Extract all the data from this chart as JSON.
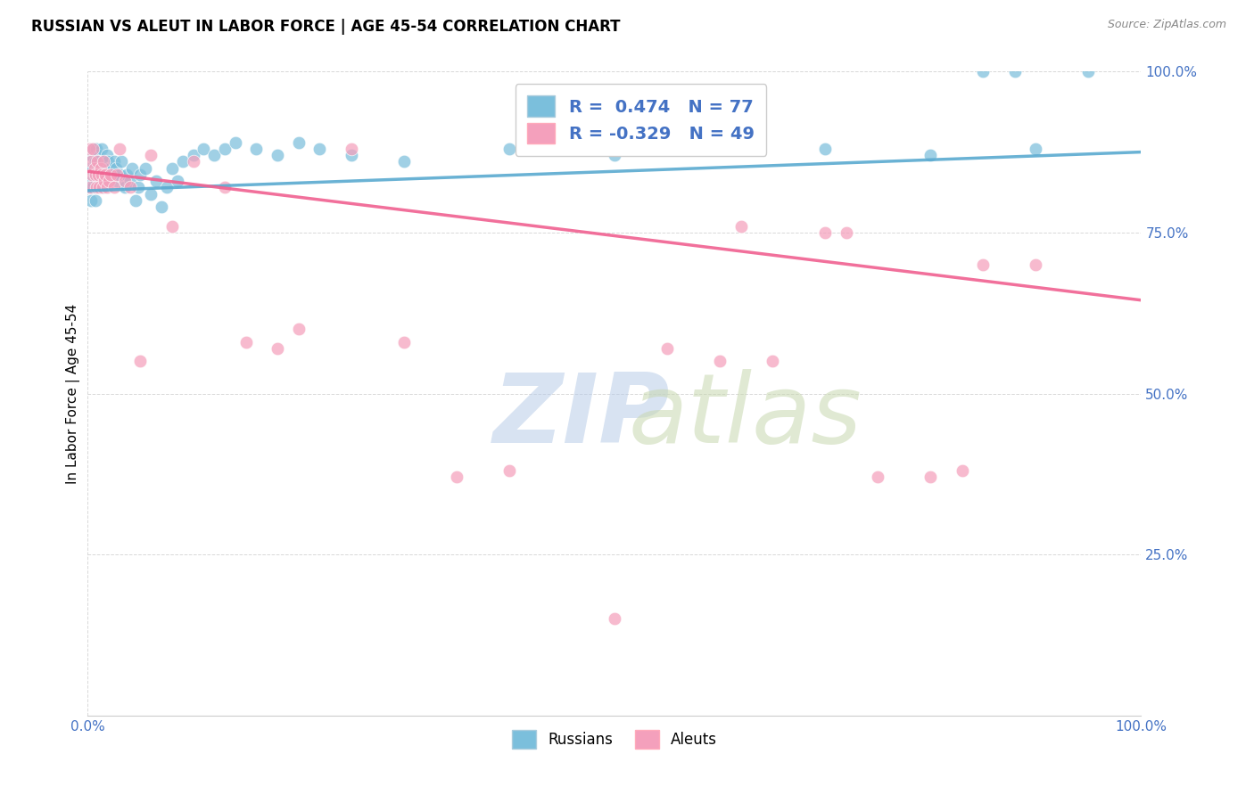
{
  "title": "RUSSIAN VS ALEUT IN LABOR FORCE | AGE 45-54 CORRELATION CHART",
  "source": "Source: ZipAtlas.com",
  "ylabel": "In Labor Force | Age 45-54",
  "R_russian": 0.474,
  "N_russian": 77,
  "R_aleut": -0.329,
  "N_aleut": 49,
  "russian_color": "#7bbfdc",
  "aleut_color": "#f4a0bc",
  "russian_line_color": "#5aaad0",
  "aleut_line_color": "#f06090",
  "background_color": "#ffffff",
  "russians_x": [
    0.001,
    0.002,
    0.003,
    0.003,
    0.004,
    0.004,
    0.005,
    0.005,
    0.006,
    0.006,
    0.007,
    0.007,
    0.008,
    0.008,
    0.009,
    0.009,
    0.01,
    0.01,
    0.011,
    0.011,
    0.012,
    0.012,
    0.013,
    0.013,
    0.014,
    0.015,
    0.015,
    0.016,
    0.016,
    0.017,
    0.017,
    0.018,
    0.018,
    0.019,
    0.02,
    0.021,
    0.022,
    0.023,
    0.025,
    0.027,
    0.028,
    0.03,
    0.032,
    0.035,
    0.037,
    0.04,
    0.042,
    0.045,
    0.048,
    0.05,
    0.055,
    0.06,
    0.065,
    0.07,
    0.075,
    0.08,
    0.085,
    0.09,
    0.1,
    0.11,
    0.12,
    0.13,
    0.14,
    0.16,
    0.18,
    0.2,
    0.22,
    0.25,
    0.3,
    0.4,
    0.5,
    0.7,
    0.8,
    0.85,
    0.88,
    0.9,
    0.95
  ],
  "russians_y": [
    0.82,
    0.85,
    0.8,
    0.87,
    0.83,
    0.88,
    0.82,
    0.85,
    0.84,
    0.88,
    0.8,
    0.86,
    0.83,
    0.88,
    0.82,
    0.85,
    0.84,
    0.87,
    0.83,
    0.86,
    0.82,
    0.85,
    0.84,
    0.88,
    0.83,
    0.82,
    0.85,
    0.84,
    0.86,
    0.83,
    0.85,
    0.84,
    0.87,
    0.86,
    0.85,
    0.84,
    0.85,
    0.84,
    0.86,
    0.85,
    0.83,
    0.84,
    0.86,
    0.82,
    0.84,
    0.83,
    0.85,
    0.8,
    0.82,
    0.84,
    0.85,
    0.81,
    0.83,
    0.79,
    0.82,
    0.85,
    0.83,
    0.86,
    0.87,
    0.88,
    0.87,
    0.88,
    0.89,
    0.88,
    0.87,
    0.89,
    0.88,
    0.87,
    0.86,
    0.88,
    0.87,
    0.88,
    0.87,
    1.0,
    1.0,
    0.88,
    1.0
  ],
  "aleuts_x": [
    0.001,
    0.002,
    0.003,
    0.004,
    0.005,
    0.006,
    0.007,
    0.008,
    0.009,
    0.01,
    0.011,
    0.012,
    0.013,
    0.014,
    0.015,
    0.016,
    0.017,
    0.018,
    0.02,
    0.022,
    0.025,
    0.028,
    0.03,
    0.035,
    0.04,
    0.05,
    0.06,
    0.08,
    0.1,
    0.13,
    0.15,
    0.18,
    0.2,
    0.25,
    0.3,
    0.35,
    0.4,
    0.5,
    0.55,
    0.6,
    0.62,
    0.65,
    0.7,
    0.72,
    0.75,
    0.8,
    0.83,
    0.85,
    0.9
  ],
  "aleuts_y": [
    0.88,
    0.82,
    0.86,
    0.84,
    0.88,
    0.85,
    0.84,
    0.82,
    0.86,
    0.84,
    0.82,
    0.85,
    0.84,
    0.82,
    0.86,
    0.83,
    0.84,
    0.82,
    0.83,
    0.84,
    0.82,
    0.84,
    0.88,
    0.83,
    0.82,
    0.55,
    0.87,
    0.76,
    0.86,
    0.82,
    0.58,
    0.57,
    0.6,
    0.88,
    0.58,
    0.37,
    0.38,
    0.15,
    0.57,
    0.55,
    0.76,
    0.55,
    0.75,
    0.75,
    0.37,
    0.37,
    0.38,
    0.7,
    0.7
  ],
  "xlim": [
    0.0,
    1.0
  ],
  "ylim": [
    0.0,
    1.0
  ],
  "xtick_positions": [
    0.0,
    1.0
  ],
  "xtick_labels": [
    "0.0%",
    "100.0%"
  ],
  "ytick_positions": [
    0.25,
    0.5,
    0.75,
    1.0
  ],
  "ytick_labels": [
    "25.0%",
    "50.0%",
    "75.0%",
    "100.0%"
  ],
  "tick_color": "#4472c4",
  "grid_color": "#d8d8d8",
  "title_fontsize": 12,
  "source_fontsize": 9,
  "ylabel_fontsize": 11,
  "scatter_size": 110,
  "scatter_alpha": 0.72
}
